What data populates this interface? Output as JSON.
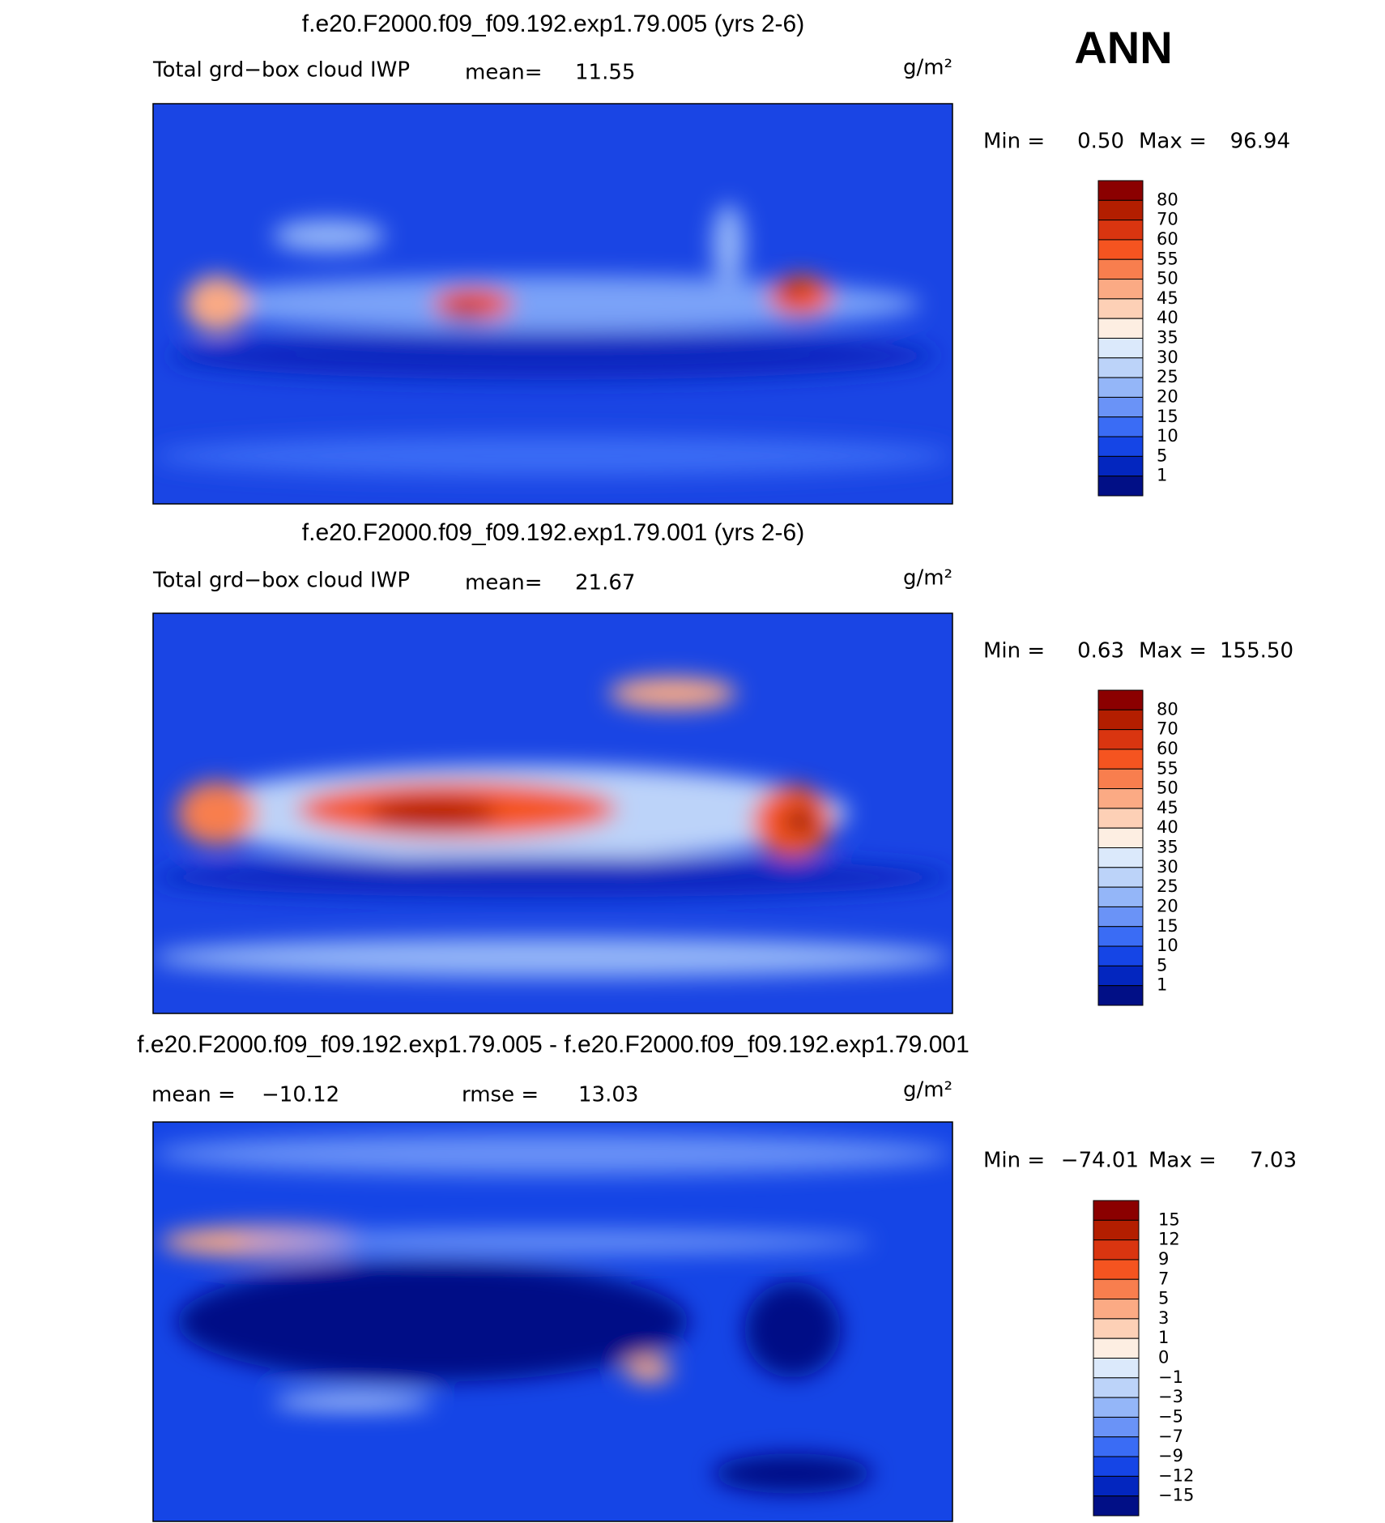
{
  "header": {
    "season": "ANN"
  },
  "panels": [
    {
      "title": "f.e20.F2000.f09_f09.192.exp1.79.005 (yrs 2-6)",
      "variable": "Total grd−box cloud IWP",
      "mean_label": "mean=",
      "mean": "11.55",
      "units": "g/m²",
      "min_label": "Min =",
      "min": "0.50",
      "max_label": "Max =",
      "max": "96.94",
      "colorbar": {
        "labels": [
          "80",
          "70",
          "60",
          "55",
          "50",
          "45",
          "40",
          "35",
          "30",
          "25",
          "20",
          "15",
          "10",
          "5",
          "1"
        ],
        "colors": [
          "#8b0000",
          "#b31e00",
          "#d93510",
          "#f55420",
          "#f87e4e",
          "#fbaa84",
          "#fdd0b6",
          "#fdeee2",
          "#dbe9fb",
          "#bcd3f9",
          "#94b6f8",
          "#6a93f7",
          "#3a6cf5",
          "#1545e6",
          "#0326bf",
          "#010f86"
        ]
      }
    },
    {
      "title": "f.e20.F2000.f09_f09.192.exp1.79.001 (yrs 2-6)",
      "variable": "Total grd−box cloud IWP",
      "mean_label": "mean=",
      "mean": "21.67",
      "units": "g/m²",
      "min_label": "Min =",
      "min": "0.63",
      "max_label": "Max =",
      "max": "155.50",
      "colorbar": {
        "labels": [
          "80",
          "70",
          "60",
          "55",
          "50",
          "45",
          "40",
          "35",
          "30",
          "25",
          "20",
          "15",
          "10",
          "5",
          "1"
        ],
        "colors": [
          "#8b0000",
          "#b31e00",
          "#d93510",
          "#f55420",
          "#f87e4e",
          "#fbaa84",
          "#fdd0b6",
          "#fdeee2",
          "#dbe9fb",
          "#bcd3f9",
          "#94b6f8",
          "#6a93f7",
          "#3a6cf5",
          "#1545e6",
          "#0326bf",
          "#010f86"
        ]
      }
    },
    {
      "title": "f.e20.F2000.f09_f09.192.exp1.79.005 - f.e20.F2000.f09_f09.192.exp1.79.001",
      "mean_label": "mean =",
      "mean": "−10.12",
      "rmse_label": "rmse =",
      "rmse": "13.03",
      "units": "g/m²",
      "min_label": "Min =",
      "min": "−74.01",
      "max_label": "Max =",
      "max": "7.03",
      "colorbar": {
        "labels": [
          "15",
          "12",
          "9",
          "7",
          "5",
          "3",
          "1",
          "0",
          "−1",
          "−3",
          "−5",
          "−7",
          "−9",
          "−12",
          "−15"
        ],
        "colors": [
          "#8b0000",
          "#b31e00",
          "#d93510",
          "#f55420",
          "#f87e4e",
          "#fbaa84",
          "#fdd0b6",
          "#fdeee2",
          "#dbe9fb",
          "#bcd3f9",
          "#94b6f8",
          "#6a93f7",
          "#3a6cf5",
          "#1545e6",
          "#0326bf",
          "#010f86"
        ]
      }
    }
  ]
}
